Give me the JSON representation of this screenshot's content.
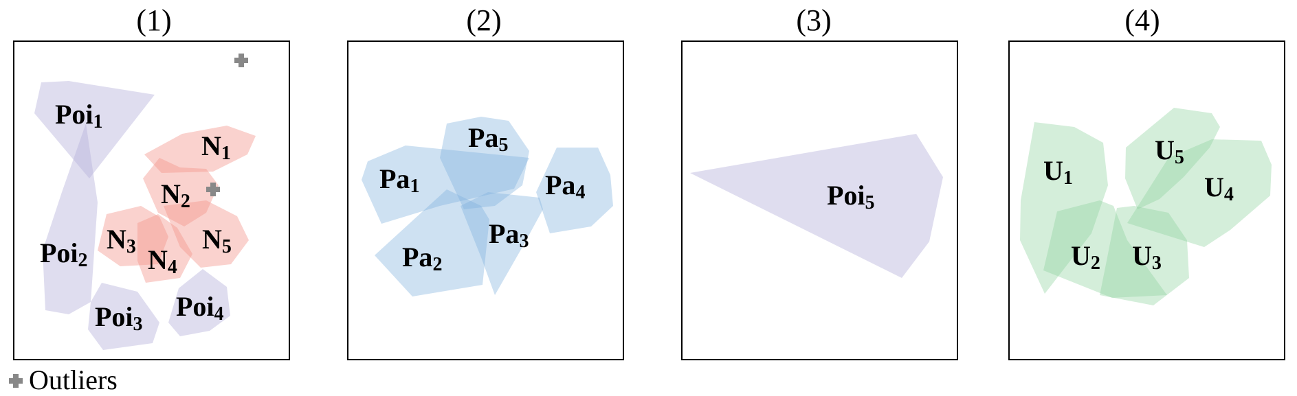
{
  "panels": [
    {
      "title": "(1)"
    },
    {
      "title": "(2)"
    },
    {
      "title": "(3)"
    },
    {
      "title": "(4)"
    }
  ],
  "labels": {
    "poi1": {
      "base": "Poi",
      "sub": "1"
    },
    "poi2": {
      "base": "Poi",
      "sub": "2"
    },
    "poi3": {
      "base": "Poi",
      "sub": "3"
    },
    "poi4": {
      "base": "Poi",
      "sub": "4"
    },
    "poi5": {
      "base": "Poi",
      "sub": "5"
    },
    "n1": {
      "base": "N",
      "sub": "1"
    },
    "n2": {
      "base": "N",
      "sub": "2"
    },
    "n3": {
      "base": "N",
      "sub": "3"
    },
    "n4": {
      "base": "N",
      "sub": "4"
    },
    "n5": {
      "base": "N",
      "sub": "5"
    },
    "pa1": {
      "base": "Pa",
      "sub": "1"
    },
    "pa2": {
      "base": "Pa",
      "sub": "2"
    },
    "pa3": {
      "base": "Pa",
      "sub": "3"
    },
    "pa4": {
      "base": "Pa",
      "sub": "4"
    },
    "pa5": {
      "base": "Pa",
      "sub": "5"
    },
    "u1": {
      "base": "U",
      "sub": "1"
    },
    "u2": {
      "base": "U",
      "sub": "2"
    },
    "u3": {
      "base": "U",
      "sub": "3"
    },
    "u4": {
      "base": "U",
      "sub": "4"
    },
    "u5": {
      "base": "U",
      "sub": "5"
    }
  },
  "legend": {
    "label": "Outliers"
  },
  "colors": {
    "poi": "#b9b4dc",
    "n": "#f4948a",
    "pa": "#7fb1dc",
    "u": "#8fd19e",
    "outlier": "#888888"
  }
}
